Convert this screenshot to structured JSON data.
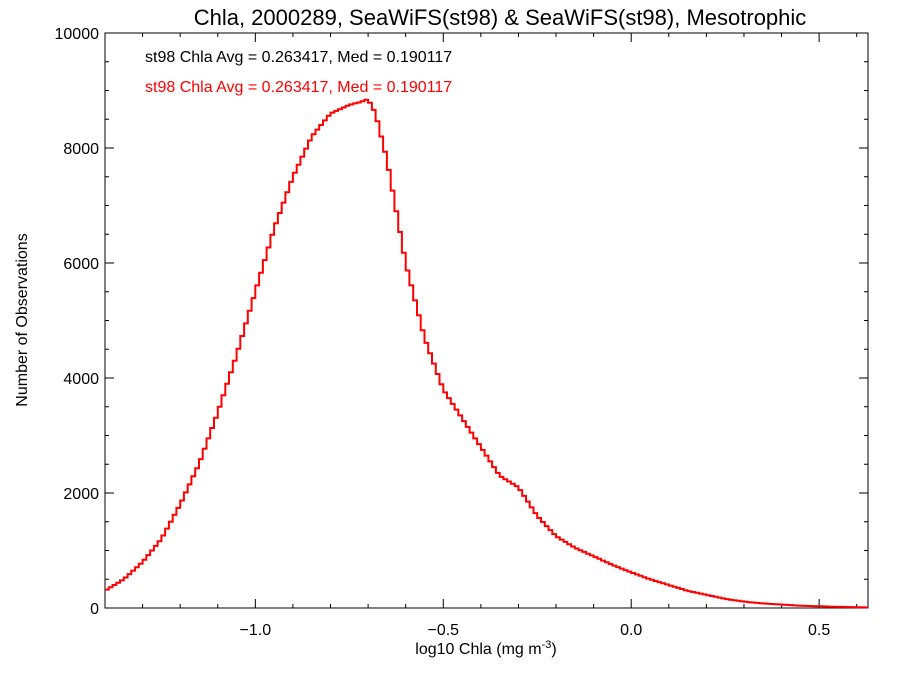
{
  "chart_data": {
    "type": "line",
    "title": "Chla, 2000289, SeaWiFS(st98) & SeaWiFS(st98), Mesotrophic",
    "xlabel": "log10 Chla (mg m",
    "xlabel_sup": "-3",
    "xlabel_close": ")",
    "ylabel": "Number of Observations",
    "xlim": [
      -1.4,
      0.63
    ],
    "ylim": [
      0,
      10000
    ],
    "x_ticks": [
      -1.0,
      -0.5,
      0.0,
      0.5
    ],
    "x_tick_labels": [
      "−1.0",
      "−0.5",
      "0.0",
      "0.5"
    ],
    "y_ticks": [
      0,
      2000,
      4000,
      6000,
      8000,
      10000
    ],
    "y_tick_labels": [
      "0",
      "2000",
      "4000",
      "6000",
      "8000",
      "10000"
    ],
    "grid": false,
    "annotations": [
      {
        "text": "st98 Chla Avg = 0.263417, Med = 0.190117",
        "color": "#000000"
      },
      {
        "text": "st98 Chla Avg = 0.263417, Med = 0.190117",
        "color": "#ff0000"
      }
    ],
    "series": [
      {
        "color": "#ff0000",
        "x": [
          -1.4,
          -1.35,
          -1.3,
          -1.25,
          -1.2,
          -1.15,
          -1.1,
          -1.05,
          -1.0,
          -0.95,
          -0.9,
          -0.85,
          -0.8,
          -0.75,
          -0.72,
          -0.7,
          -0.68,
          -0.65,
          -0.6,
          -0.55,
          -0.5,
          -0.45,
          -0.4,
          -0.35,
          -0.3,
          -0.25,
          -0.2,
          -0.15,
          -0.1,
          -0.05,
          0.0,
          0.05,
          0.1,
          0.15,
          0.2,
          0.25,
          0.3,
          0.35,
          0.4,
          0.45,
          0.5,
          0.55,
          0.6,
          0.63
        ],
        "y": [
          300,
          500,
          800,
          1200,
          1800,
          2500,
          3400,
          4400,
          5500,
          6600,
          7500,
          8200,
          8600,
          8750,
          8800,
          8850,
          8600,
          7800,
          6000,
          4700,
          3800,
          3300,
          2800,
          2300,
          2100,
          1600,
          1250,
          1050,
          900,
          750,
          620,
          500,
          400,
          300,
          230,
          160,
          110,
          80,
          60,
          40,
          30,
          20,
          15,
          10
        ]
      }
    ]
  }
}
